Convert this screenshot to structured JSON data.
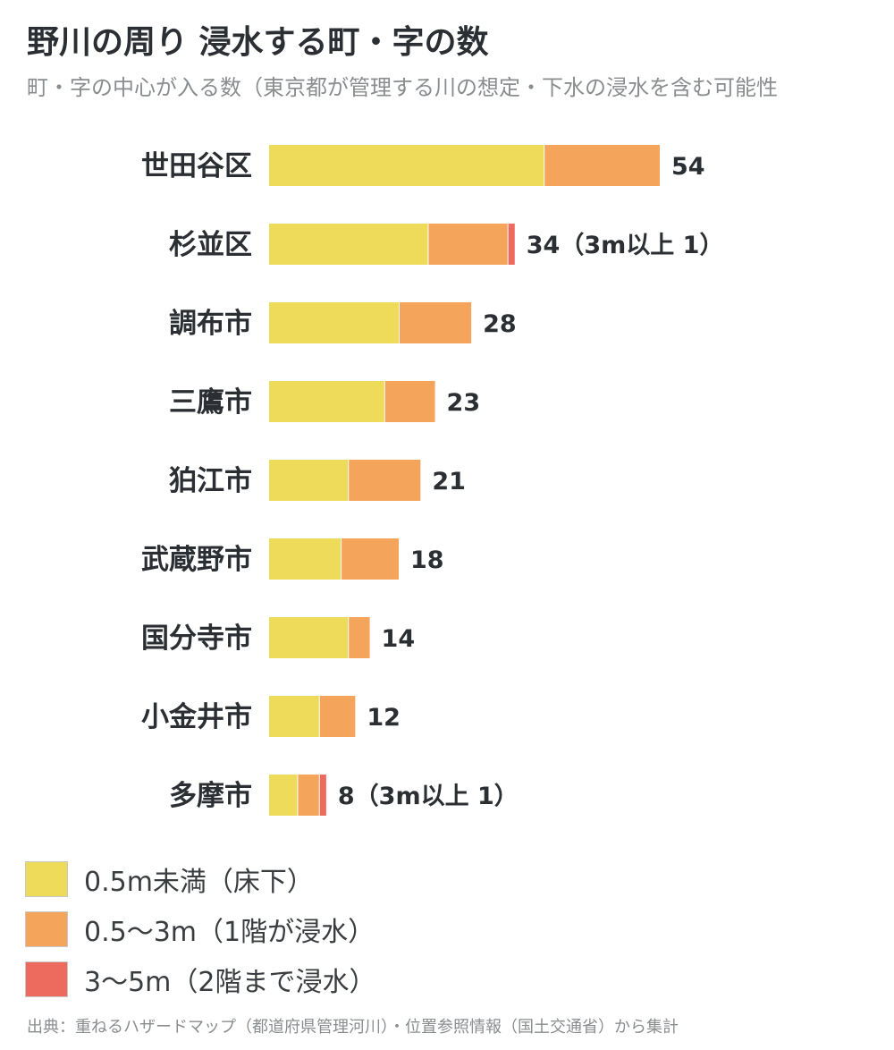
{
  "title": "野川の周り 浸水する町・字の数",
  "subtitle": "町・字の中心が入る数（東京都が管理する川の想定・下水の浸水を含む可能性",
  "source": "出典：重ねるハザードマップ（都道府県管理河川）・位置参照情報（国土交通省）から集計",
  "chart_data": {
    "type": "bar",
    "orientation": "horizontal",
    "stacked": true,
    "categories": [
      "世田谷区",
      "杉並区",
      "調布市",
      "三鷹市",
      "狛江市",
      "武蔵野市",
      "国分寺市",
      "小金井市",
      "多摩市"
    ],
    "series": [
      {
        "name": "0.5m未満（床下）",
        "color": "#eedb5a",
        "values": [
          38,
          22,
          18,
          16,
          11,
          10,
          11,
          7,
          4
        ]
      },
      {
        "name": "0.5〜3m（1階が浸水）",
        "color": "#f5a45c",
        "values": [
          16,
          11,
          10,
          7,
          10,
          8,
          3,
          5,
          3
        ]
      },
      {
        "name": "3〜5m（2階まで浸水）",
        "color": "#ec6b5e",
        "values": [
          0,
          1,
          0,
          0,
          0,
          0,
          0,
          0,
          1
        ]
      }
    ],
    "value_labels": [
      "54",
      "34（3m以上 1）",
      "28",
      "23",
      "21",
      "18",
      "14",
      "12",
      "8（3m以上 1）"
    ],
    "xlim": [
      0,
      54
    ],
    "grid": false,
    "legend_position": "bottom-left"
  }
}
